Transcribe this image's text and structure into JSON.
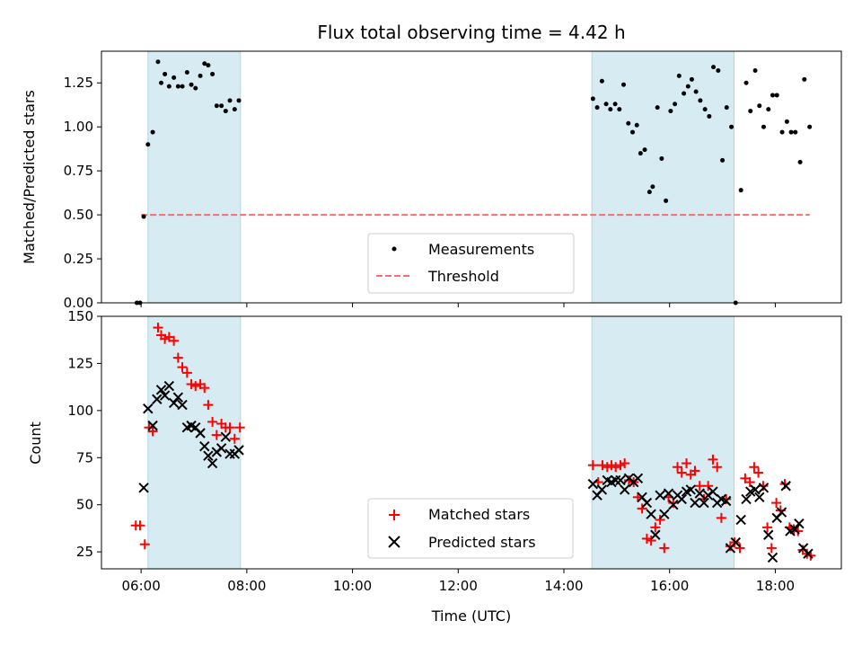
{
  "chart_data": [
    {
      "type": "scatter",
      "title": "Flux total observing time = 4.42 h",
      "xlabel": "",
      "ylabel": "Matched/Predicted stars",
      "xlim": [
        5.25,
        19.25
      ],
      "ylim": [
        0,
        1.43
      ],
      "yticks": [
        0.0,
        0.25,
        0.5,
        0.75,
        1.0,
        1.25
      ],
      "ytick_labels": [
        "0.00",
        "0.25",
        "0.50",
        "0.75",
        "1.00",
        "1.25"
      ],
      "shaded_intervals": [
        [
          6.13,
          7.88
        ],
        [
          14.53,
          17.22
        ]
      ],
      "shade_color": "#add8e6",
      "legend": {
        "position": "lower-center",
        "entries": [
          "Measurements",
          "Threshold"
        ]
      },
      "threshold": {
        "name": "Threshold",
        "y": 0.5,
        "x": [
          6.0,
          18.65
        ],
        "color": "#ff6b6b",
        "style": "dashed"
      },
      "series": [
        {
          "name": "Measurements",
          "marker": "dot",
          "color": "#000000",
          "points": [
            [
              5.92,
              0.0
            ],
            [
              5.98,
              0.0
            ],
            [
              6.05,
              0.49
            ],
            [
              6.13,
              0.9
            ],
            [
              6.22,
              0.97
            ],
            [
              6.32,
              1.37
            ],
            [
              6.38,
              1.25
            ],
            [
              6.45,
              1.3
            ],
            [
              6.53,
              1.23
            ],
            [
              6.62,
              1.28
            ],
            [
              6.7,
              1.23
            ],
            [
              6.78,
              1.23
            ],
            [
              6.87,
              1.31
            ],
            [
              6.95,
              1.24
            ],
            [
              7.03,
              1.22
            ],
            [
              7.12,
              1.29
            ],
            [
              7.2,
              1.36
            ],
            [
              7.27,
              1.35
            ],
            [
              7.35,
              1.3
            ],
            [
              7.43,
              1.12
            ],
            [
              7.52,
              1.12
            ],
            [
              7.6,
              1.09
            ],
            [
              7.68,
              1.15
            ],
            [
              7.77,
              1.1
            ],
            [
              7.85,
              1.15
            ],
            [
              14.55,
              1.16
            ],
            [
              14.63,
              1.11
            ],
            [
              14.72,
              1.26
            ],
            [
              14.8,
              1.13
            ],
            [
              14.88,
              1.1
            ],
            [
              14.97,
              1.13
            ],
            [
              15.05,
              1.1
            ],
            [
              15.13,
              1.24
            ],
            [
              15.22,
              1.02
            ],
            [
              15.3,
              0.97
            ],
            [
              15.38,
              1.01
            ],
            [
              15.45,
              0.85
            ],
            [
              15.53,
              0.87
            ],
            [
              15.62,
              0.63
            ],
            [
              15.68,
              0.66
            ],
            [
              15.77,
              1.11
            ],
            [
              15.85,
              0.82
            ],
            [
              15.93,
              0.58
            ],
            [
              16.02,
              1.09
            ],
            [
              16.1,
              1.13
            ],
            [
              16.18,
              1.29
            ],
            [
              16.27,
              1.19
            ],
            [
              16.35,
              1.23
            ],
            [
              16.42,
              1.27
            ],
            [
              16.5,
              1.2
            ],
            [
              16.58,
              1.15
            ],
            [
              16.67,
              1.1
            ],
            [
              16.75,
              1.06
            ],
            [
              16.83,
              1.34
            ],
            [
              16.92,
              1.32
            ],
            [
              17.0,
              0.81
            ],
            [
              17.08,
              1.11
            ],
            [
              17.17,
              1.0
            ],
            [
              17.25,
              0.0
            ],
            [
              17.35,
              0.64
            ],
            [
              17.45,
              1.25
            ],
            [
              17.53,
              1.09
            ],
            [
              17.62,
              1.32
            ],
            [
              17.7,
              1.12
            ],
            [
              17.78,
              1.0
            ],
            [
              17.87,
              1.1
            ],
            [
              17.95,
              1.18
            ],
            [
              18.03,
              1.18
            ],
            [
              18.13,
              0.97
            ],
            [
              18.22,
              1.03
            ],
            [
              18.3,
              0.97
            ],
            [
              18.38,
              0.97
            ],
            [
              18.47,
              0.8
            ],
            [
              18.55,
              1.27
            ],
            [
              18.65,
              1.0
            ]
          ]
        }
      ]
    },
    {
      "type": "scatter",
      "title": "",
      "xlabel": "Time (UTC)",
      "ylabel": "Count",
      "xlim": [
        5.25,
        19.25
      ],
      "ylim": [
        16,
        150
      ],
      "xticks": [
        6,
        8,
        10,
        12,
        14,
        16,
        18
      ],
      "xtick_labels": [
        "06:00",
        "08:00",
        "10:00",
        "12:00",
        "14:00",
        "16:00",
        "18:00"
      ],
      "yticks": [
        25,
        50,
        75,
        100,
        125,
        150
      ],
      "ytick_labels": [
        "25",
        "50",
        "75",
        "100",
        "125",
        "150"
      ],
      "shaded_intervals": [
        [
          6.13,
          7.88
        ],
        [
          14.53,
          17.22
        ]
      ],
      "shade_color": "#add8e6",
      "legend": {
        "position": "lower-center",
        "entries": [
          "Matched stars",
          "Predicted stars"
        ]
      },
      "series": [
        {
          "name": "Matched stars",
          "marker": "plus",
          "color": "#ff0000",
          "points": [
            [
              5.9,
              39
            ],
            [
              5.98,
              39
            ],
            [
              6.07,
              29
            ],
            [
              6.15,
              91
            ],
            [
              6.22,
              89
            ],
            [
              6.32,
              144
            ],
            [
              6.38,
              140
            ],
            [
              6.45,
              138
            ],
            [
              6.53,
              139
            ],
            [
              6.62,
              137
            ],
            [
              6.7,
              128
            ],
            [
              6.78,
              123
            ],
            [
              6.87,
              120
            ],
            [
              6.95,
              114
            ],
            [
              7.03,
              113
            ],
            [
              7.12,
              114
            ],
            [
              7.2,
              112
            ],
            [
              7.27,
              103
            ],
            [
              7.35,
              94
            ],
            [
              7.43,
              87
            ],
            [
              7.52,
              93
            ],
            [
              7.6,
              91
            ],
            [
              7.68,
              91
            ],
            [
              7.77,
              85
            ],
            [
              7.87,
              91
            ],
            [
              14.55,
              71
            ],
            [
              14.65,
              62
            ],
            [
              14.73,
              71
            ],
            [
              14.82,
              70
            ],
            [
              14.9,
              71
            ],
            [
              14.98,
              70
            ],
            [
              15.07,
              71
            ],
            [
              15.15,
              72
            ],
            [
              15.23,
              63
            ],
            [
              15.32,
              62
            ],
            [
              15.4,
              54
            ],
            [
              15.48,
              48
            ],
            [
              15.57,
              32
            ],
            [
              15.65,
              31
            ],
            [
              15.73,
              38
            ],
            [
              15.82,
              42
            ],
            [
              15.9,
              27
            ],
            [
              15.98,
              54
            ],
            [
              16.07,
              51
            ],
            [
              16.15,
              70
            ],
            [
              16.23,
              67
            ],
            [
              16.32,
              72
            ],
            [
              16.4,
              66
            ],
            [
              16.48,
              68
            ],
            [
              16.57,
              60
            ],
            [
              16.65,
              53
            ],
            [
              16.73,
              60
            ],
            [
              16.82,
              74
            ],
            [
              16.9,
              70
            ],
            [
              16.98,
              43
            ],
            [
              17.07,
              53
            ],
            [
              17.15,
              28
            ],
            [
              17.23,
              30
            ],
            [
              17.33,
              27
            ],
            [
              17.43,
              64
            ],
            [
              17.52,
              62
            ],
            [
              17.6,
              70
            ],
            [
              17.68,
              67
            ],
            [
              17.77,
              60
            ],
            [
              17.85,
              38
            ],
            [
              17.93,
              27
            ],
            [
              18.02,
              51
            ],
            [
              18.1,
              47
            ],
            [
              18.18,
              61
            ],
            [
              18.27,
              38
            ],
            [
              18.35,
              37
            ],
            [
              18.43,
              36
            ],
            [
              18.52,
              26
            ],
            [
              18.6,
              24
            ],
            [
              18.67,
              23
            ]
          ]
        },
        {
          "name": "Predicted stars",
          "marker": "x",
          "color": "#000000",
          "points": [
            [
              6.05,
              59
            ],
            [
              6.13,
              101
            ],
            [
              6.22,
              92
            ],
            [
              6.3,
              106
            ],
            [
              6.38,
              111
            ],
            [
              6.45,
              108
            ],
            [
              6.53,
              113
            ],
            [
              6.62,
              104
            ],
            [
              6.7,
              107
            ],
            [
              6.78,
              103
            ],
            [
              6.87,
              91
            ],
            [
              6.95,
              92
            ],
            [
              7.03,
              91
            ],
            [
              7.12,
              88
            ],
            [
              7.2,
              81
            ],
            [
              7.27,
              76
            ],
            [
              7.35,
              72
            ],
            [
              7.43,
              78
            ],
            [
              7.52,
              80
            ],
            [
              7.6,
              86
            ],
            [
              7.68,
              77
            ],
            [
              7.77,
              77
            ],
            [
              7.85,
              79
            ],
            [
              14.55,
              61
            ],
            [
              14.63,
              55
            ],
            [
              14.72,
              58
            ],
            [
              14.82,
              63
            ],
            [
              14.9,
              62
            ],
            [
              14.98,
              63
            ],
            [
              15.07,
              63
            ],
            [
              15.15,
              58
            ],
            [
              15.23,
              64
            ],
            [
              15.32,
              62
            ],
            [
              15.4,
              64
            ],
            [
              15.48,
              54
            ],
            [
              15.57,
              51
            ],
            [
              15.65,
              45
            ],
            [
              15.73,
              34
            ],
            [
              15.82,
              55
            ],
            [
              15.9,
              45
            ],
            [
              15.98,
              56
            ],
            [
              16.07,
              50
            ],
            [
              16.15,
              55
            ],
            [
              16.23,
              53
            ],
            [
              16.32,
              57
            ],
            [
              16.4,
              58
            ],
            [
              16.48,
              51
            ],
            [
              16.57,
              56
            ],
            [
              16.65,
              51
            ],
            [
              16.73,
              55
            ],
            [
              16.82,
              57
            ],
            [
              16.9,
              51
            ],
            [
              16.98,
              53
            ],
            [
              17.07,
              52
            ],
            [
              17.15,
              27
            ],
            [
              17.25,
              30
            ],
            [
              17.35,
              42
            ],
            [
              17.45,
              53
            ],
            [
              17.53,
              57
            ],
            [
              17.62,
              58
            ],
            [
              17.7,
              54
            ],
            [
              17.78,
              59
            ],
            [
              17.87,
              34
            ],
            [
              17.95,
              22
            ],
            [
              18.03,
              43
            ],
            [
              18.12,
              46
            ],
            [
              18.2,
              60
            ],
            [
              18.28,
              36
            ],
            [
              18.37,
              37
            ],
            [
              18.45,
              40
            ],
            [
              18.53,
              27
            ],
            [
              18.62,
              24
            ]
          ]
        }
      ]
    }
  ]
}
